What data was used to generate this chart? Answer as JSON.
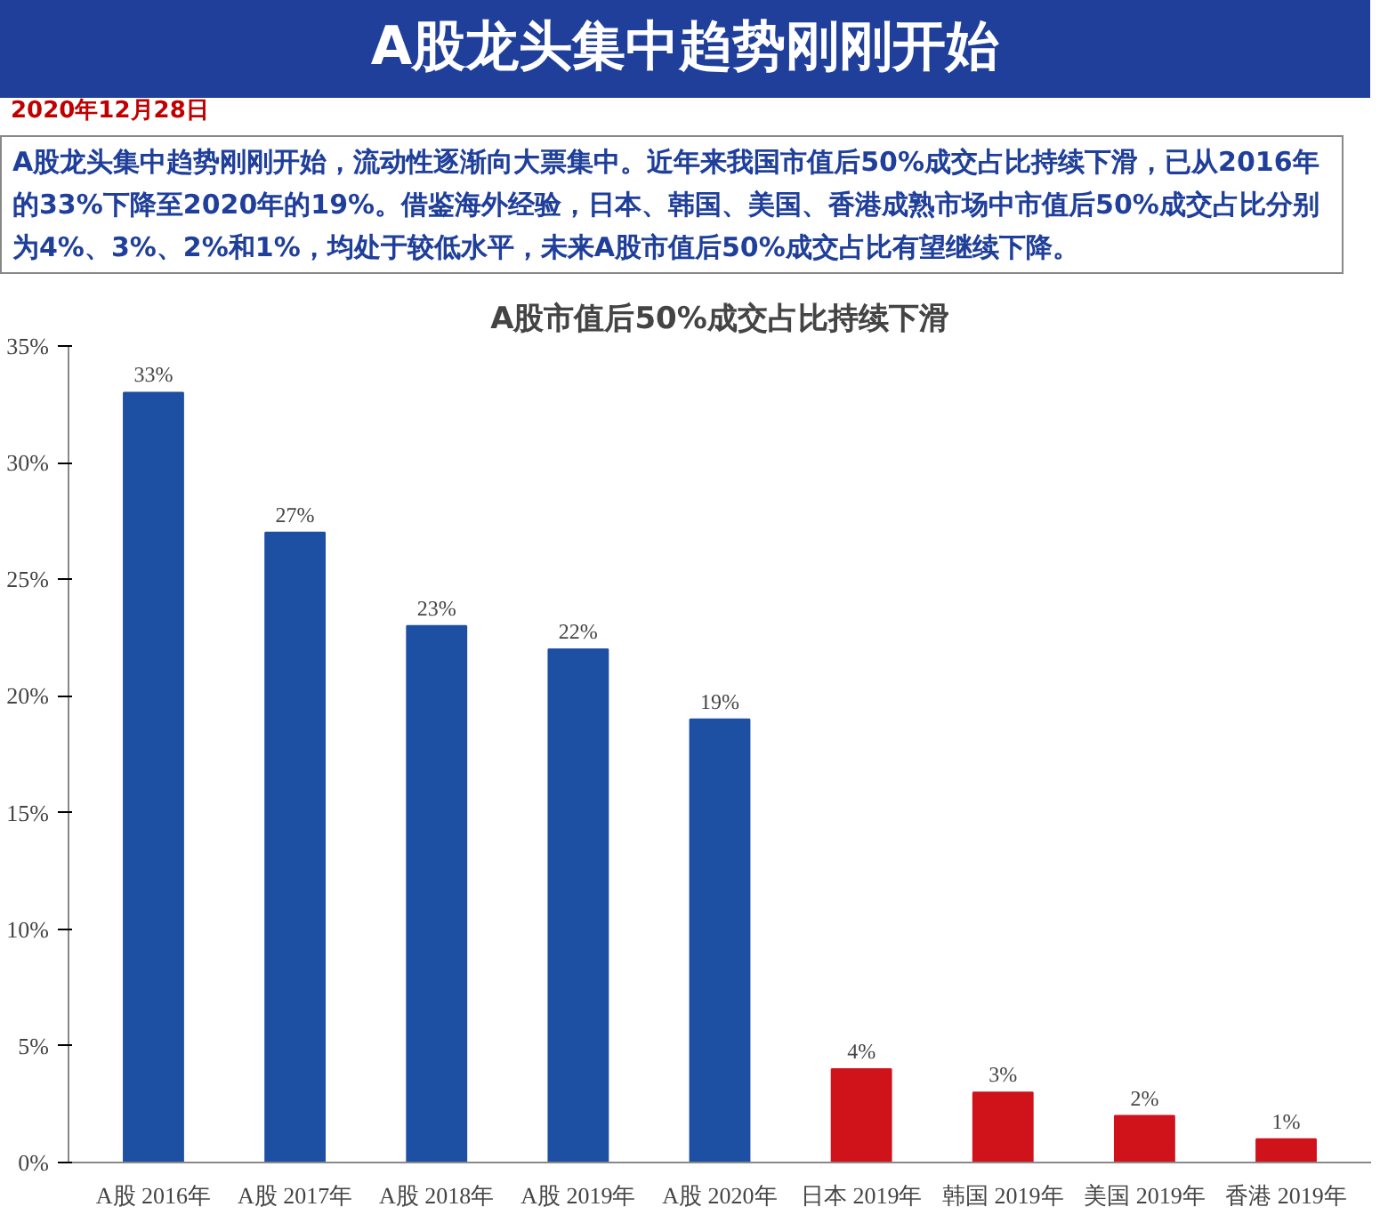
{
  "chart_data": {
    "type": "bar",
    "title": "A股市值后50%成交占比持续下滑",
    "subtitle": "A股龙头集中趋势刚刚开始，流动性逐渐向大票集中。近年来我国市值后50%成交占比持续下滑，已从2016年的33%下降至2020年的19%。借鉴海外经验，日本、韩国、美国、香港成熟市场中市值后50%成交占比分别为4%、3%、2%和1%，均处于较低水平，未来A股市值后50%成交占比有望继续下降。",
    "annotations": [
      "A股龙头集中趋势刚刚开始",
      "2020年12月28日"
    ],
    "categories": [
      "A股 2016年",
      "A股 2017年",
      "A股 2018年",
      "A股 2019年",
      "A股 2020年",
      "日本 2019年",
      "韩国 2019年",
      "美国 2019年",
      "香港 2019年"
    ],
    "values": [
      33,
      27,
      23,
      22,
      19,
      4,
      3,
      2,
      1
    ],
    "value_labels": [
      "33%",
      "27%",
      "23%",
      "22%",
      "19%",
      "4%",
      "3%",
      "2%",
      "1%"
    ],
    "colors": [
      "#1d4fa3",
      "#1d4fa3",
      "#1d4fa3",
      "#1d4fa3",
      "#1d4fa3",
      "#d0121b",
      "#d0121b",
      "#d0121b",
      "#d0121b"
    ],
    "ylim": [
      0,
      35
    ],
    "yticks": [
      {
        "value": 0,
        "label": "0%"
      },
      {
        "value": 5,
        "label": "5%"
      },
      {
        "value": 10,
        "label": "10%"
      },
      {
        "value": 15,
        "label": "15%"
      },
      {
        "value": 20,
        "label": "20%"
      },
      {
        "value": 25,
        "label": "25%"
      },
      {
        "value": 30,
        "label": "30%"
      },
      {
        "value": 35,
        "label": "35%"
      }
    ]
  }
}
